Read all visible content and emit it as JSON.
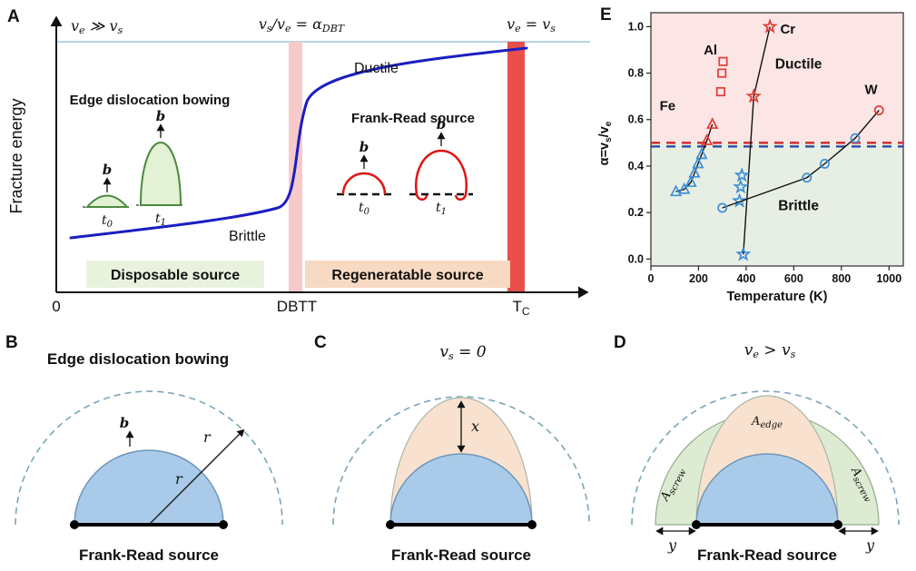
{
  "figure": {
    "panelA": {
      "label": "A",
      "ylabel": "Fracture energy",
      "top_left": [
        "v",
        "e",
        " ≫ v",
        "s"
      ],
      "top_mid": [
        "v",
        "s",
        "/v",
        "e",
        " = α",
        "DBT"
      ],
      "top_right": [
        "v",
        "e",
        " = v",
        "s"
      ],
      "ductile": "Ductile",
      "brittle": "Brittle",
      "edge_bowing_title": "Edge dislocation bowing",
      "frank_read_title": "Frank-Read source",
      "b": "b",
      "t0": [
        "t",
        "0"
      ],
      "t1": [
        "t",
        "1"
      ],
      "box_disposable": "Disposable source",
      "box_regeneratable": "Regeneratable source",
      "x_origin": "0",
      "x_dbtt": "DBTT",
      "x_tc": [
        "T",
        "C"
      ],
      "colors": {
        "curve": "#1a1ec0",
        "dbtt_band": "#f7c9c9",
        "tc_band": "#e94f4b",
        "top_line": "#9fc6dc",
        "green_fill": "#e3f1d5",
        "green_stroke": "#4c8a3f",
        "red_loop": "#e01414",
        "box_green": "#e9f2dd",
        "box_orange": "#f8d9c2"
      }
    },
    "panelB": {
      "label": "B",
      "title": "Edge dislocation bowing",
      "b": "b",
      "r_outer": "r",
      "r_inner": "r",
      "caption": "Frank-Read source"
    },
    "panelC": {
      "label": "C",
      "title": [
        "v",
        "s",
        " = 0"
      ],
      "x": "x",
      "caption": "Frank-Read source"
    },
    "panelD": {
      "label": "D",
      "title": [
        "v",
        "e",
        " > v",
        "s"
      ],
      "area_edge": [
        "A",
        "edge"
      ],
      "area_screw": [
        "A",
        "screw"
      ],
      "y_left": "y",
      "y_right": "y",
      "caption": "Frank-Read source"
    },
    "panelE": {
      "label": "E"
    },
    "shape_colors": {
      "blue_fill": "#a9cbe9",
      "blue_stroke": "#6e96ba",
      "peach_fill": "#f8e1ce",
      "green_fill": "#dcebd2",
      "dashed_arc": "#7ba4b8"
    }
  },
  "chart_data": {
    "type": "scatter",
    "xlabel": "Temperature (K)",
    "ylabel_parts": [
      "α=v",
      "s",
      "/v",
      "e"
    ],
    "xlim": [
      0,
      1060
    ],
    "ylim": [
      -0.03,
      1.06
    ],
    "xticks": [
      0,
      200,
      400,
      600,
      800,
      1000
    ],
    "yticks": [
      "0.0",
      "0.2",
      "0.4",
      "0.6",
      "0.8",
      "1.0"
    ],
    "grid": false,
    "legend": "none",
    "threshold": 0.5,
    "threshold_line_colors": [
      "#d83434",
      "#20439c"
    ],
    "point_colors": {
      "blue": "#3f8fd6",
      "red": "#e23b34"
    },
    "line_color": "#111111",
    "regions": {
      "ductile": {
        "label": "Ductile",
        "fill": "#fce5e5",
        "text_color": "#e8463e",
        "label_T": 620,
        "label_a": 0.82
      },
      "brittle": {
        "label": "Brittle",
        "fill": "#e7efe4",
        "text_color": "#4d9fdd",
        "label_T": 620,
        "label_a": 0.21
      }
    },
    "series": [
      {
        "name": "Fe",
        "marker": "triangle",
        "label_T": 70,
        "label_a": 0.64,
        "label_color": "#b03535",
        "connect": "points",
        "points": [
          {
            "T": 105,
            "a": 0.29,
            "c": "blue"
          },
          {
            "T": 140,
            "a": 0.3,
            "c": "blue"
          },
          {
            "T": 168,
            "a": 0.33,
            "c": "blue"
          },
          {
            "T": 183,
            "a": 0.37,
            "c": "blue"
          },
          {
            "T": 198,
            "a": 0.41,
            "c": "blue"
          },
          {
            "T": 213,
            "a": 0.45,
            "c": "blue"
          },
          {
            "T": 235,
            "a": 0.51,
            "c": "red"
          },
          {
            "T": 258,
            "a": 0.58,
            "c": "red"
          }
        ]
      },
      {
        "name": "Al",
        "marker": "square",
        "label_T": 250,
        "label_a": 0.88,
        "label_color": "#111111",
        "connect": "none",
        "points": [
          {
            "T": 293,
            "a": 0.72,
            "c": "red"
          },
          {
            "T": 298,
            "a": 0.8,
            "c": "red"
          },
          {
            "T": 303,
            "a": 0.85,
            "c": "red"
          }
        ]
      },
      {
        "name": "Cr",
        "marker": "star",
        "label_T": 575,
        "label_a": 0.97,
        "label_color": "#111111",
        "connect": "line_points",
        "line_points": [
          [
            388,
            0.02
          ],
          [
            432,
            0.7
          ],
          [
            500,
            1.0
          ]
        ],
        "points": [
          {
            "T": 388,
            "a": 0.02,
            "c": "blue"
          },
          {
            "T": 372,
            "a": 0.25,
            "c": "blue"
          },
          {
            "T": 377,
            "a": 0.31,
            "c": "blue"
          },
          {
            "T": 382,
            "a": 0.36,
            "c": "blue"
          },
          {
            "T": 432,
            "a": 0.7,
            "c": "red"
          },
          {
            "T": 500,
            "a": 1.0,
            "c": "red"
          }
        ]
      },
      {
        "name": "W",
        "marker": "circle",
        "label_T": 925,
        "label_a": 0.71,
        "label_color": "#111111",
        "connect": "points",
        "points": [
          {
            "T": 300,
            "a": 0.22,
            "c": "blue"
          },
          {
            "T": 655,
            "a": 0.35,
            "c": "blue"
          },
          {
            "T": 730,
            "a": 0.41,
            "c": "blue"
          },
          {
            "T": 858,
            "a": 0.52,
            "c": "blue"
          },
          {
            "T": 958,
            "a": 0.64,
            "c": "red"
          }
        ]
      }
    ]
  }
}
